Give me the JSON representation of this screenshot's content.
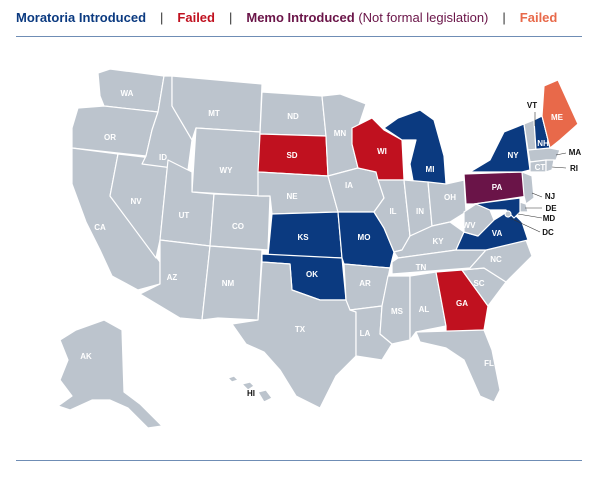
{
  "legend": {
    "moratoria": "Moratoria Introduced",
    "separator": "|",
    "failed": "Failed",
    "memo": "Memo Introduced",
    "memo_note": "(Not formal legislation)",
    "failed2": "Failed"
  },
  "colors": {
    "default": "#bcc4cd",
    "moratoria": "#0b3a80",
    "failed": "#c0111f",
    "memo": "#6a1448",
    "failed2": "#e8694a",
    "border": "#ffffff",
    "rule": "#6f8db5"
  },
  "states": {
    "WA": {
      "label": "WA",
      "status": "none"
    },
    "OR": {
      "label": "OR",
      "status": "none"
    },
    "CA": {
      "label": "CA",
      "status": "none"
    },
    "NV": {
      "label": "NV",
      "status": "none"
    },
    "ID": {
      "label": "ID",
      "status": "none"
    },
    "MT": {
      "label": "MT",
      "status": "none"
    },
    "WY": {
      "label": "WY",
      "status": "none"
    },
    "UT": {
      "label": "UT",
      "status": "none"
    },
    "AZ": {
      "label": "AZ",
      "status": "none"
    },
    "CO": {
      "label": "CO",
      "status": "none"
    },
    "NM": {
      "label": "NM",
      "status": "none"
    },
    "ND": {
      "label": "ND",
      "status": "none"
    },
    "SD": {
      "label": "SD",
      "status": "failed"
    },
    "NE": {
      "label": "NE",
      "status": "none"
    },
    "KS": {
      "label": "KS",
      "status": "moratoria"
    },
    "OK": {
      "label": "OK",
      "status": "moratoria"
    },
    "TX": {
      "label": "TX",
      "status": "none"
    },
    "MN": {
      "label": "MN",
      "status": "none"
    },
    "IA": {
      "label": "IA",
      "status": "none"
    },
    "MO": {
      "label": "MO",
      "status": "moratoria"
    },
    "AR": {
      "label": "AR",
      "status": "none"
    },
    "LA": {
      "label": "LA",
      "status": "none"
    },
    "WI": {
      "label": "WI",
      "status": "failed"
    },
    "IL": {
      "label": "IL",
      "status": "none"
    },
    "MI": {
      "label": "MI",
      "status": "moratoria"
    },
    "IN": {
      "label": "IN",
      "status": "none"
    },
    "OH": {
      "label": "OH",
      "status": "none"
    },
    "KY": {
      "label": "KY",
      "status": "none"
    },
    "TN": {
      "label": "TN",
      "status": "none"
    },
    "MS": {
      "label": "MS",
      "status": "none"
    },
    "AL": {
      "label": "AL",
      "status": "none"
    },
    "GA": {
      "label": "GA",
      "status": "failed"
    },
    "FL": {
      "label": "FL",
      "status": "none"
    },
    "SC": {
      "label": "SC",
      "status": "none"
    },
    "NC": {
      "label": "NC",
      "status": "none"
    },
    "VA": {
      "label": "VA",
      "status": "moratoria"
    },
    "WV": {
      "label": "WV",
      "status": "none"
    },
    "PA": {
      "label": "PA",
      "status": "memo"
    },
    "NY": {
      "label": "NY",
      "status": "moratoria"
    },
    "VT": {
      "label": "VT",
      "status": "none"
    },
    "NH": {
      "label": "NH",
      "status": "moratoria"
    },
    "ME": {
      "label": "ME",
      "status": "failed2"
    },
    "MA": {
      "label": "MA",
      "status": "none"
    },
    "RI": {
      "label": "RI",
      "status": "none"
    },
    "CT": {
      "label": "CT",
      "status": "none"
    },
    "NJ": {
      "label": "NJ",
      "status": "none"
    },
    "DE": {
      "label": "DE",
      "status": "none"
    },
    "MD": {
      "label": "MD",
      "status": "moratoria"
    },
    "DC": {
      "label": "DC",
      "status": "none"
    },
    "AK": {
      "label": "AK",
      "status": "none"
    },
    "HI": {
      "label": "HI",
      "status": "none"
    }
  }
}
